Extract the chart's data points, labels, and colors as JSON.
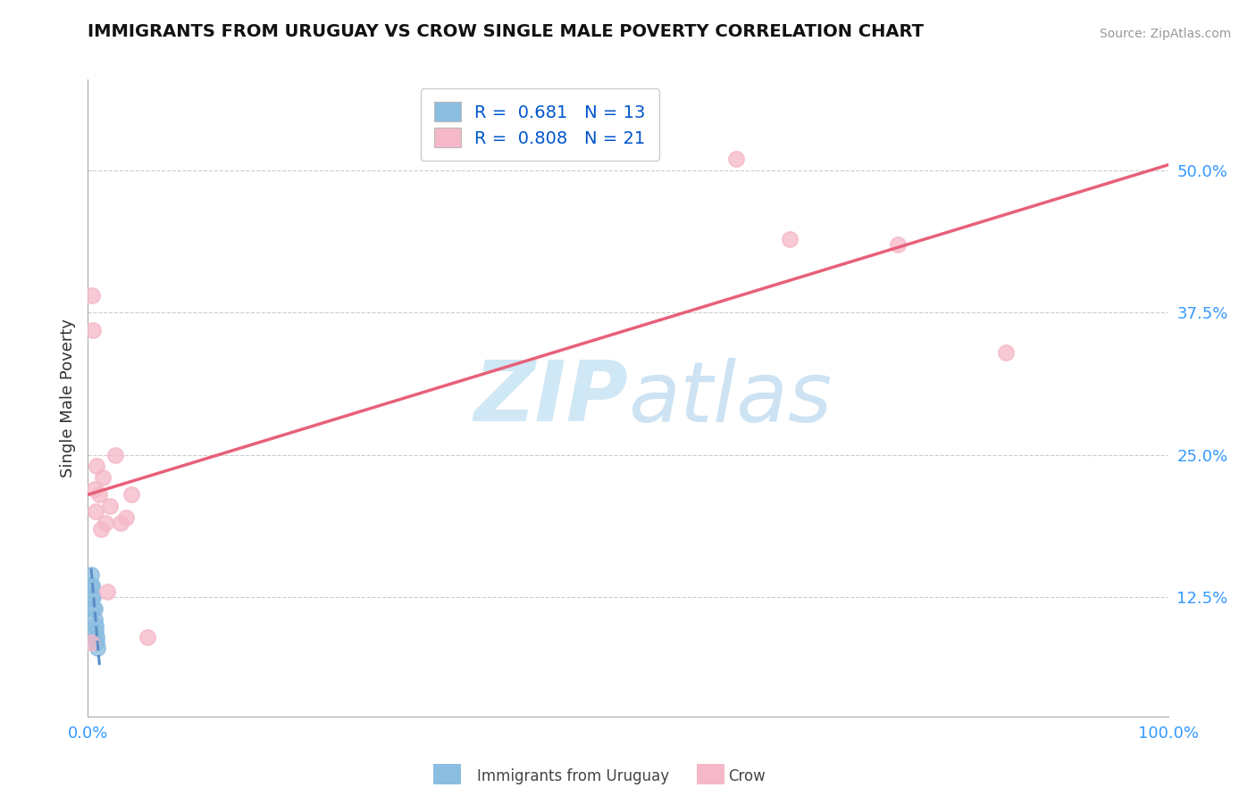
{
  "title": "IMMIGRANTS FROM URUGUAY VS CROW SINGLE MALE POVERTY CORRELATION CHART",
  "source": "Source: ZipAtlas.com",
  "ylabel": "Single Male Poverty",
  "yticks": [
    0.125,
    0.25,
    0.375,
    0.5
  ],
  "ytick_labels": [
    "12.5%",
    "25.0%",
    "37.5%",
    "50.0%"
  ],
  "xticks": [
    0.0,
    0.1,
    0.2,
    0.3,
    0.4,
    0.5,
    0.6,
    0.7,
    0.8,
    0.9,
    1.0
  ],
  "xtick_labels": [
    "0.0%",
    "",
    "",
    "",
    "",
    "",
    "",
    "",
    "",
    "",
    "100.0%"
  ],
  "xlim": [
    0.0,
    1.0
  ],
  "ylim": [
    0.02,
    0.58
  ],
  "legend_blue_r": "0.681",
  "legend_blue_n": "13",
  "legend_pink_r": "0.808",
  "legend_pink_n": "21",
  "blue_scatter_x": [
    0.003,
    0.003,
    0.004,
    0.004,
    0.005,
    0.005,
    0.006,
    0.006,
    0.007,
    0.007,
    0.008,
    0.008,
    0.009
  ],
  "blue_scatter_y": [
    0.135,
    0.145,
    0.125,
    0.135,
    0.115,
    0.125,
    0.105,
    0.115,
    0.095,
    0.1,
    0.085,
    0.09,
    0.08
  ],
  "pink_scatter_x": [
    0.003,
    0.004,
    0.005,
    0.006,
    0.007,
    0.008,
    0.01,
    0.012,
    0.014,
    0.016,
    0.018,
    0.02,
    0.025,
    0.03,
    0.035,
    0.04,
    0.055,
    0.6,
    0.65,
    0.75,
    0.85
  ],
  "pink_scatter_y": [
    0.085,
    0.39,
    0.36,
    0.22,
    0.2,
    0.24,
    0.215,
    0.185,
    0.23,
    0.19,
    0.13,
    0.205,
    0.25,
    0.19,
    0.195,
    0.215,
    0.09,
    0.51,
    0.44,
    0.435,
    0.34
  ],
  "blue_line_x": [
    0.003,
    0.011
  ],
  "blue_line_y": [
    0.15,
    0.062
  ],
  "pink_line_x": [
    0.0,
    1.0
  ],
  "pink_line_y": [
    0.215,
    0.505
  ],
  "blue_color": "#8bbde0",
  "pink_color": "#f5b8c8",
  "blue_line_color": "#5a8fc8",
  "pink_line_color": "#e8607a",
  "bg_color": "#ffffff",
  "watermark_color": "#d0e8f5",
  "grid_color": "#cccccc"
}
